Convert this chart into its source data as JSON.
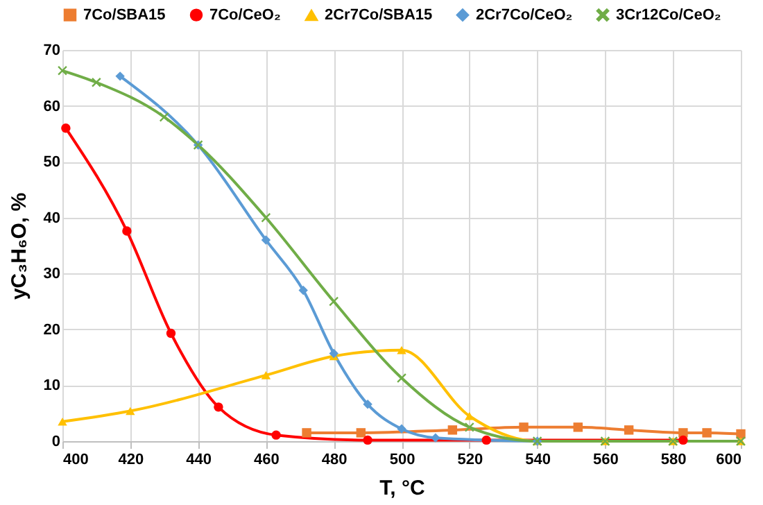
{
  "chart_data": {
    "type": "line",
    "xlabel": "T, °C",
    "ylabel": "yC₃H₆O, %",
    "xlim": [
      400,
      600
    ],
    "xticks": [
      400,
      420,
      440,
      460,
      480,
      500,
      520,
      540,
      560,
      580,
      600
    ],
    "ylim": [
      0,
      70
    ],
    "yticks": [
      0,
      10,
      20,
      30,
      40,
      50,
      60,
      70
    ],
    "grid": true,
    "legend": "top",
    "line_style": "solid",
    "series": [
      {
        "name": "7Co/SBA15",
        "color": "#ed7d31",
        "marker": "square",
        "x": [
          472,
          488,
          515,
          536,
          552,
          567,
          583,
          590,
          600
        ],
        "values": [
          1.5,
          1.5,
          2.0,
          2.5,
          2.5,
          2.0,
          1.5,
          1.5,
          1.3
        ]
      },
      {
        "name": "7Co/CeO₂",
        "color": "#ff0000",
        "marker": "circle",
        "x": [
          401,
          419,
          432,
          446,
          463,
          490,
          525,
          583
        ],
        "values": [
          56,
          37.6,
          19.3,
          6.1,
          1.1,
          0.2,
          0.2,
          0.2
        ]
      },
      {
        "name": "2Cr7Co/SBA15",
        "color": "#ffc000",
        "marker": "triangle",
        "x": [
          400,
          420,
          460,
          480,
          500,
          520,
          540,
          560,
          580,
          600
        ],
        "values": [
          3.5,
          5.4,
          11.8,
          15.2,
          16.3,
          4.5,
          0,
          0,
          0,
          0
        ]
      },
      {
        "name": "2Cr7Co/CeO₂",
        "color": "#5b9bd5",
        "marker": "diamond",
        "x": [
          417,
          440,
          460,
          471,
          480,
          490,
          500,
          510,
          540
        ],
        "values": [
          65.3,
          53,
          36,
          27,
          15.7,
          6.6,
          2.2,
          0.6,
          0
        ]
      },
      {
        "name": "3Cr12Co/CeO₂",
        "color": "#70ad47",
        "marker": "cross",
        "x": [
          400,
          410,
          430,
          440,
          460,
          480,
          500,
          520,
          540,
          560,
          580,
          600
        ],
        "values": [
          66.3,
          64.2,
          58,
          53,
          40,
          25,
          11.3,
          2.5,
          0,
          0,
          0,
          0
        ]
      }
    ]
  }
}
